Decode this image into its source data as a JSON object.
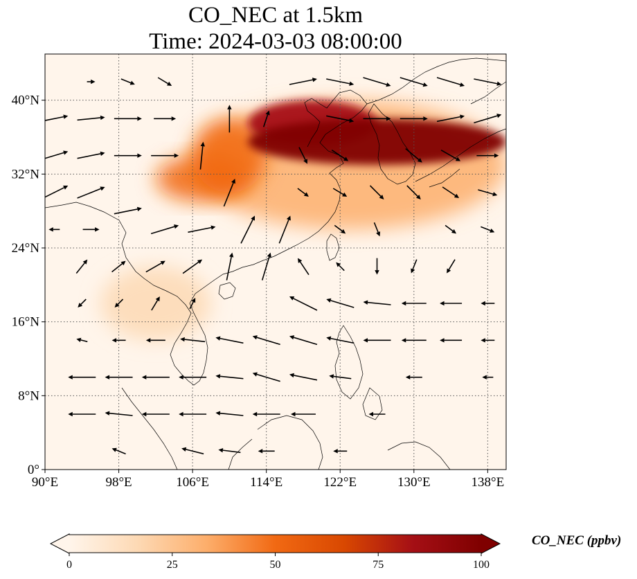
{
  "title": {
    "line1": "CO_NEC at 1.5km",
    "line2": "Time: 2024-03-03 08:00:00"
  },
  "axes": {
    "lon_min": 90,
    "lon_max": 140,
    "lat_min": 0,
    "lat_max": 45,
    "x_ticks": [
      {
        "value": 90,
        "label": "90°E"
      },
      {
        "value": 98,
        "label": "98°E"
      },
      {
        "value": 106,
        "label": "106°E"
      },
      {
        "value": 114,
        "label": "114°E"
      },
      {
        "value": 122,
        "label": "122°E"
      },
      {
        "value": 130,
        "label": "130°E"
      },
      {
        "value": 138,
        "label": "138°E"
      }
    ],
    "y_ticks": [
      {
        "value": 0,
        "label": "0°"
      },
      {
        "value": 8,
        "label": "8°N"
      },
      {
        "value": 16,
        "label": "16°N"
      },
      {
        "value": 24,
        "label": "24°N"
      },
      {
        "value": 32,
        "label": "32°N"
      },
      {
        "value": 40,
        "label": "40°N"
      }
    ],
    "gridlines": "dotted"
  },
  "colorbar": {
    "label": "CO_NEC (ppbv)",
    "min": 0,
    "max": 100,
    "ticks": [
      {
        "value": 0,
        "label": "0"
      },
      {
        "value": 25,
        "label": "25"
      },
      {
        "value": 50,
        "label": "50"
      },
      {
        "value": 75,
        "label": "75"
      },
      {
        "value": 100,
        "label": "100"
      }
    ],
    "colormap": [
      "#fff5eb",
      "#fdd9b4",
      "#fdae6b",
      "#f16913",
      "#d94801",
      "#a50f15",
      "#7f0000"
    ],
    "extend": "both"
  },
  "chart_data": {
    "type": "heatmap",
    "variable": "CO_NEC",
    "units": "ppbv",
    "level": "1.5km",
    "time": "2024-03-03 08:00:00",
    "concentration_regions": [
      {
        "lon_range": [
          112,
          140
        ],
        "lat_range": [
          33,
          38
        ],
        "value": 100
      },
      {
        "lon_range": [
          112,
          126
        ],
        "lat_range": [
          35,
          40
        ],
        "value": 90
      },
      {
        "lon_range": [
          106,
          114
        ],
        "lat_range": [
          30,
          38
        ],
        "value": 55
      },
      {
        "lon_range": [
          102,
          112
        ],
        "lat_range": [
          29,
          34
        ],
        "value": 45
      },
      {
        "lon_range": [
          106,
          140
        ],
        "lat_range": [
          26,
          40
        ],
        "value": 25
      },
      {
        "lon_range": [
          96,
          108
        ],
        "lat_range": [
          14,
          22
        ],
        "value": 15
      }
    ],
    "wind_field": [
      {
        "lon": 91,
        "lat": 38,
        "u": 1,
        "v": 0.2
      },
      {
        "lon": 95,
        "lat": 38,
        "u": 1,
        "v": 0.1
      },
      {
        "lon": 99,
        "lat": 38,
        "u": 1,
        "v": 0
      },
      {
        "lon": 91,
        "lat": 34,
        "u": 1,
        "v": 0.3
      },
      {
        "lon": 95,
        "lat": 34,
        "u": 1,
        "v": 0.2
      },
      {
        "lon": 99,
        "lat": 34,
        "u": 1,
        "v": 0
      },
      {
        "lon": 103,
        "lat": 34,
        "u": 1,
        "v": 0
      },
      {
        "lon": 91,
        "lat": 30,
        "u": 1,
        "v": 0.5
      },
      {
        "lon": 95,
        "lat": 30,
        "u": 1,
        "v": 0.4
      },
      {
        "lon": 99,
        "lat": 28,
        "u": 1,
        "v": 0.2
      },
      {
        "lon": 103,
        "lat": 26,
        "u": 1,
        "v": 0.3
      },
      {
        "lon": 107,
        "lat": 26,
        "u": 1,
        "v": 0.2
      },
      {
        "lon": 107,
        "lat": 34,
        "u": 0.1,
        "v": 1
      },
      {
        "lon": 110,
        "lat": 30,
        "u": 0.4,
        "v": 1
      },
      {
        "lon": 112,
        "lat": 26,
        "u": 0.5,
        "v": 1
      },
      {
        "lon": 116,
        "lat": 26,
        "u": 0.4,
        "v": 1
      },
      {
        "lon": 110,
        "lat": 22,
        "u": 0.2,
        "v": 1
      },
      {
        "lon": 114,
        "lat": 22,
        "u": 0.3,
        "v": 1
      },
      {
        "lon": 110,
        "lat": 38,
        "u": 0,
        "v": 1
      },
      {
        "lon": 114,
        "lat": 38,
        "u": 0.2,
        "v": 0.6
      },
      {
        "lon": 118,
        "lat": 42,
        "u": 1,
        "v": 0.2
      },
      {
        "lon": 122,
        "lat": 42,
        "u": 1,
        "v": -0.2
      },
      {
        "lon": 126,
        "lat": 42,
        "u": 1,
        "v": -0.3
      },
      {
        "lon": 130,
        "lat": 42,
        "u": 1,
        "v": -0.3
      },
      {
        "lon": 134,
        "lat": 42,
        "u": 1,
        "v": -0.3
      },
      {
        "lon": 138,
        "lat": 42,
        "u": 1,
        "v": -0.2
      },
      {
        "lon": 126,
        "lat": 38,
        "u": 1,
        "v": 0
      },
      {
        "lon": 130,
        "lat": 38,
        "u": 1,
        "v": 0
      },
      {
        "lon": 134,
        "lat": 38,
        "u": 1,
        "v": 0.2
      },
      {
        "lon": 138,
        "lat": 38,
        "u": 1,
        "v": 0.3
      },
      {
        "lon": 130,
        "lat": 34,
        "u": 0.6,
        "v": -0.5
      },
      {
        "lon": 134,
        "lat": 34,
        "u": 0.7,
        "v": -0.4
      },
      {
        "lon": 126,
        "lat": 30,
        "u": 0.5,
        "v": -0.5
      },
      {
        "lon": 130,
        "lat": 30,
        "u": 0.5,
        "v": -0.5
      },
      {
        "lon": 134,
        "lat": 30,
        "u": 0.6,
        "v": -0.4
      },
      {
        "lon": 122,
        "lat": 26,
        "u": 0.4,
        "v": -0.3
      },
      {
        "lon": 126,
        "lat": 26,
        "u": 0.2,
        "v": -0.5
      },
      {
        "lon": 134,
        "lat": 26,
        "u": 0.4,
        "v": -0.3
      },
      {
        "lon": 126,
        "lat": 22,
        "u": 0,
        "v": -0.6
      },
      {
        "lon": 130,
        "lat": 22,
        "u": -0.2,
        "v": -0.5
      },
      {
        "lon": 134,
        "lat": 22,
        "u": -0.3,
        "v": -0.5
      },
      {
        "lon": 118,
        "lat": 18,
        "u": -1,
        "v": 0.5
      },
      {
        "lon": 122,
        "lat": 18,
        "u": -1,
        "v": 0.3
      },
      {
        "lon": 126,
        "lat": 18,
        "u": -1,
        "v": 0.1
      },
      {
        "lon": 130,
        "lat": 18,
        "u": -0.9,
        "v": 0
      },
      {
        "lon": 134,
        "lat": 18,
        "u": -0.8,
        "v": 0
      },
      {
        "lon": 118,
        "lat": 14,
        "u": -1,
        "v": 0.3
      },
      {
        "lon": 122,
        "lat": 14,
        "u": -1,
        "v": 0.2
      },
      {
        "lon": 126,
        "lat": 14,
        "u": -1,
        "v": 0
      },
      {
        "lon": 130,
        "lat": 14,
        "u": -0.9,
        "v": 0
      },
      {
        "lon": 134,
        "lat": 14,
        "u": -0.8,
        "v": 0
      },
      {
        "lon": 114,
        "lat": 14,
        "u": -1,
        "v": 0.3
      },
      {
        "lon": 110,
        "lat": 14,
        "u": -1,
        "v": 0.2
      },
      {
        "lon": 114,
        "lat": 10,
        "u": -1,
        "v": 0.3
      },
      {
        "lon": 110,
        "lat": 10,
        "u": -1,
        "v": 0.1
      },
      {
        "lon": 118,
        "lat": 10,
        "u": -1,
        "v": 0.2
      },
      {
        "lon": 106,
        "lat": 10,
        "u": -1,
        "v": 0
      },
      {
        "lon": 102,
        "lat": 10,
        "u": -1,
        "v": 0
      },
      {
        "lon": 98,
        "lat": 10,
        "u": -1,
        "v": 0
      },
      {
        "lon": 94,
        "lat": 10,
        "u": -1,
        "v": 0
      },
      {
        "lon": 102,
        "lat": 6,
        "u": -1,
        "v": 0
      },
      {
        "lon": 98,
        "lat": 6,
        "u": -1,
        "v": 0.1
      },
      {
        "lon": 94,
        "lat": 6,
        "u": -1,
        "v": 0
      },
      {
        "lon": 106,
        "lat": 6,
        "u": -1,
        "v": 0
      },
      {
        "lon": 110,
        "lat": 6,
        "u": -1,
        "v": 0.1
      },
      {
        "lon": 114,
        "lat": 6,
        "u": -1,
        "v": 0
      },
      {
        "lon": 118,
        "lat": 6,
        "u": -0.9,
        "v": 0
      },
      {
        "lon": 126,
        "lat": 6,
        "u": -0.6,
        "v": 0
      },
      {
        "lon": 106,
        "lat": 2,
        "u": -0.8,
        "v": 0.2
      },
      {
        "lon": 110,
        "lat": 2,
        "u": -0.8,
        "v": 0.1
      },
      {
        "lon": 114,
        "lat": 2,
        "u": -0.6,
        "v": 0
      },
      {
        "lon": 122,
        "lat": 2,
        "u": -0.5,
        "v": 0
      },
      {
        "lon": 98,
        "lat": 2,
        "u": -0.5,
        "v": 0.2
      },
      {
        "lon": 94,
        "lat": 14,
        "u": -0.4,
        "v": 0.1
      },
      {
        "lon": 98,
        "lat": 14,
        "u": -0.5,
        "v": 0
      },
      {
        "lon": 102,
        "lat": 14,
        "u": -0.7,
        "v": 0
      },
      {
        "lon": 106,
        "lat": 14,
        "u": -0.9,
        "v": 0.1
      },
      {
        "lon": 94,
        "lat": 18,
        "u": -0.3,
        "v": -0.3
      },
      {
        "lon": 98,
        "lat": 18,
        "u": -0.3,
        "v": -0.3
      },
      {
        "lon": 102,
        "lat": 18,
        "u": 0.3,
        "v": 0.5
      },
      {
        "lon": 106,
        "lat": 18,
        "u": 0.2,
        "v": 0.4
      },
      {
        "lon": 94,
        "lat": 22,
        "u": 0.4,
        "v": 0.5
      },
      {
        "lon": 98,
        "lat": 22,
        "u": 0.5,
        "v": 0.4
      },
      {
        "lon": 102,
        "lat": 22,
        "u": 0.7,
        "v": 0.4
      },
      {
        "lon": 106,
        "lat": 22,
        "u": 0.7,
        "v": 0.5
      },
      {
        "lon": 91,
        "lat": 26,
        "u": -0.4,
        "v": 0
      },
      {
        "lon": 95,
        "lat": 26,
        "u": 0.6,
        "v": 0
      },
      {
        "lon": 99,
        "lat": 42,
        "u": 0.5,
        "v": -0.2
      },
      {
        "lon": 103,
        "lat": 42,
        "u": 0.5,
        "v": -0.3
      },
      {
        "lon": 95,
        "lat": 42,
        "u": 0.3,
        "v": 0
      },
      {
        "lon": 103,
        "lat": 38,
        "u": 0.8,
        "v": 0
      },
      {
        "lon": 118,
        "lat": 30,
        "u": 0.4,
        "v": -0.3
      },
      {
        "lon": 122,
        "lat": 30,
        "u": 0.5,
        "v": -0.3
      },
      {
        "lon": 118,
        "lat": 34,
        "u": 0.3,
        "v": -0.6
      },
      {
        "lon": 122,
        "lat": 34,
        "u": 0.6,
        "v": -0.4
      },
      {
        "lon": 122,
        "lat": 38,
        "u": 1,
        "v": -0.2
      },
      {
        "lon": 118,
        "lat": 22,
        "u": -0.4,
        "v": 0.6
      },
      {
        "lon": 122,
        "lat": 22,
        "u": -0.3,
        "v": 0.3
      },
      {
        "lon": 138,
        "lat": 26,
        "u": 0.5,
        "v": -0.2
      },
      {
        "lon": 138,
        "lat": 30,
        "u": 0.7,
        "v": -0.2
      },
      {
        "lon": 138,
        "lat": 34,
        "u": 0.8,
        "v": 0
      },
      {
        "lon": 138,
        "lat": 18,
        "u": -0.5,
        "v": 0
      },
      {
        "lon": 138,
        "lat": 14,
        "u": -0.5,
        "v": 0
      },
      {
        "lon": 138,
        "lat": 10,
        "u": -0.4,
        "v": 0
      },
      {
        "lon": 130,
        "lat": 10,
        "u": -0.6,
        "v": 0
      },
      {
        "lon": 122,
        "lat": 10,
        "u": -0.8,
        "v": 0.1
      }
    ]
  }
}
